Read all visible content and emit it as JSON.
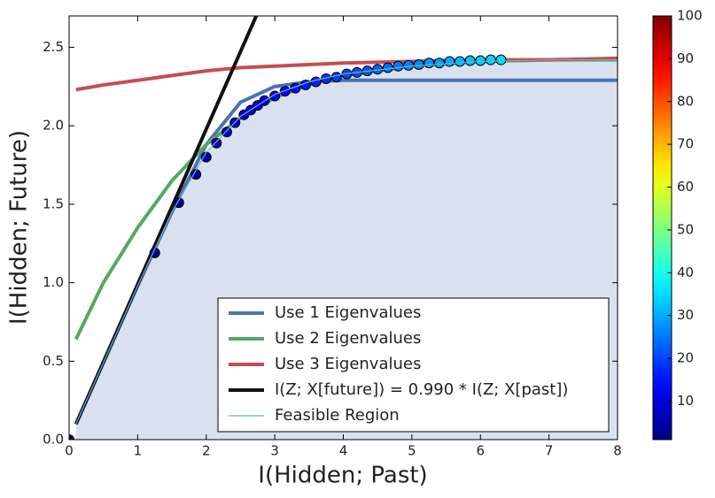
{
  "chart_data": {
    "type": "line",
    "xlabel": "I(Hidden; Past)",
    "ylabel": "I(Hidden; Future)",
    "xlim": [
      0,
      8
    ],
    "ylim": [
      0,
      2.7
    ],
    "xticks": [
      0,
      1,
      2,
      3,
      4,
      5,
      6,
      7,
      8
    ],
    "yticks": [
      {
        "value": 0,
        "label": "0.0"
      },
      0.5,
      {
        "value": 1,
        "label": "1.0"
      },
      1.5,
      {
        "value": 2,
        "label": "2.0"
      },
      2.5
    ],
    "legend_position": "lower right",
    "colormap": "jet",
    "colorbar": {
      "lim": [
        1,
        100
      ],
      "ticks": [
        10,
        20,
        30,
        40,
        50,
        60,
        70,
        80,
        90,
        100
      ]
    },
    "series": [
      {
        "name": "Use 1 Eigenvalues",
        "color": "#4c72b0",
        "x": [
          0.1,
          0.5,
          1,
          1.5,
          2,
          2.5,
          3,
          3.5,
          4,
          5,
          6,
          7,
          8
        ],
        "values": [
          0.1,
          0.49,
          0.98,
          1.45,
          1.88,
          2.15,
          2.25,
          2.28,
          2.29,
          2.29,
          2.29,
          2.29,
          2.29
        ]
      },
      {
        "name": "Use 2 Eigenvalues",
        "color": "#55a868",
        "x": [
          0.1,
          0.5,
          1,
          1.5,
          2,
          2.5,
          3,
          3.5,
          4,
          5,
          6,
          7,
          8
        ],
        "values": [
          0.64,
          1.0,
          1.35,
          1.65,
          1.88,
          2.05,
          2.18,
          2.26,
          2.32,
          2.38,
          2.41,
          2.42,
          2.42
        ]
      },
      {
        "name": "Use 3 Eigenvalues",
        "color": "#c44e52",
        "x": [
          0.1,
          0.5,
          1,
          1.5,
          2,
          2.5,
          3,
          4,
          5,
          6,
          7,
          8
        ],
        "values": [
          2.23,
          2.26,
          2.29,
          2.32,
          2.35,
          2.37,
          2.38,
          2.4,
          2.41,
          2.42,
          2.42,
          2.43
        ]
      },
      {
        "name": "I(Z; X[future]) = 0.990 * I(Z; X[past])",
        "color": "#111111",
        "x": [
          0.1,
          2.73
        ],
        "values": [
          0.099,
          2.7
        ]
      },
      {
        "name": "Feasible Region",
        "color": "#6baed6",
        "fill": "#dae1ee",
        "thin": true,
        "x": [
          0.1,
          0.5,
          1,
          1.5,
          2,
          2.5,
          3,
          3.5,
          4,
          5,
          6,
          7,
          8
        ],
        "values": [
          0.1,
          0.49,
          0.98,
          1.45,
          1.83,
          2.06,
          2.2,
          2.28,
          2.33,
          2.38,
          2.41,
          2.42,
          2.42
        ]
      },
      {
        "type": "scatter",
        "x": [
          0,
          1.25,
          1.6,
          1.85,
          2.0,
          2.15,
          2.3,
          2.42,
          2.55,
          2.65,
          2.75,
          2.85,
          3.0,
          3.15,
          3.3,
          3.45,
          3.6,
          3.75,
          3.9,
          4.05,
          4.2,
          4.35,
          4.5,
          4.65,
          4.8,
          4.95,
          5.1,
          5.25,
          5.4,
          5.55,
          5.7,
          5.85,
          6.0,
          6.15,
          6.3
        ],
        "values": [
          0,
          1.19,
          1.51,
          1.69,
          1.8,
          1.89,
          1.96,
          2.02,
          2.07,
          2.1,
          2.13,
          2.16,
          2.19,
          2.22,
          2.24,
          2.26,
          2.28,
          2.3,
          2.31,
          2.33,
          2.34,
          2.35,
          2.36,
          2.37,
          2.38,
          2.385,
          2.39,
          2.4,
          2.4,
          2.41,
          2.41,
          2.415,
          2.415,
          2.42,
          2.42
        ],
        "c": [
          1,
          2,
          3,
          4,
          5,
          6,
          7,
          8,
          9,
          10,
          11,
          12,
          13,
          14,
          15,
          16,
          17,
          18,
          19,
          20,
          21,
          22,
          23,
          24,
          25,
          26,
          27,
          28,
          29,
          30,
          31,
          32,
          33,
          34,
          35
        ]
      }
    ]
  }
}
